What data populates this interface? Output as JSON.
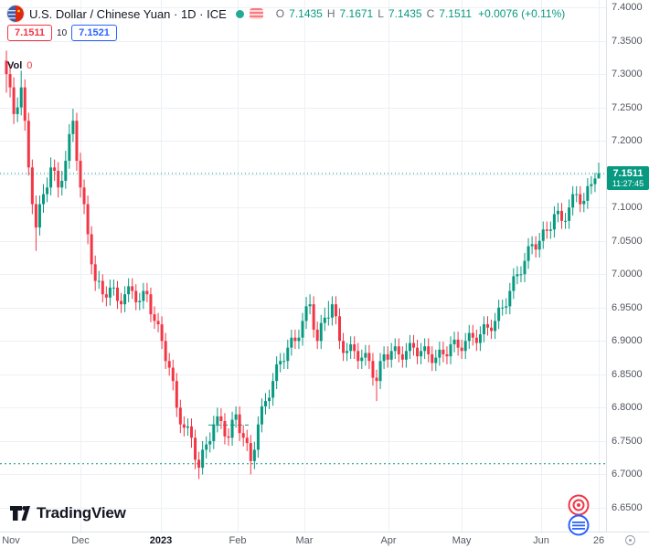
{
  "header": {
    "title": "U.S. Dollar / Chinese Yuan · 1D · ICE",
    "ohlc": {
      "o_label": "O",
      "o_value": "7.1435",
      "h_label": "H",
      "h_value": "7.1671",
      "l_label": "L",
      "l_value": "7.1435",
      "c_label": "C",
      "c_value": "7.1511",
      "change": "+0.0076 (+0.11%)"
    },
    "sell_price": "7.1511",
    "spread": "10",
    "buy_price": "7.1521",
    "volume_label": "Vol",
    "volume_value": "0"
  },
  "price_scale": {
    "labels": [
      "7.4000",
      "7.3500",
      "7.3000",
      "7.2500",
      "7.2000",
      "7.1500",
      "7.1000",
      "7.0500",
      "7.0000",
      "6.9500",
      "6.9000",
      "6.8500",
      "6.8000",
      "6.7500",
      "6.7000",
      "6.6500"
    ],
    "current_price": "7.1511",
    "countdown": "11:27:45"
  },
  "time_scale": {
    "ticks": [
      {
        "label": "Nov",
        "x": 12,
        "grid": false
      },
      {
        "label": "Dec",
        "x": 88,
        "grid": true
      },
      {
        "label": "2023",
        "x": 176,
        "grid": true,
        "year": true
      },
      {
        "label": "Feb",
        "x": 260,
        "grid": true
      },
      {
        "label": "Mar",
        "x": 333,
        "grid": true
      },
      {
        "label": "Apr",
        "x": 425,
        "grid": true
      },
      {
        "label": "May",
        "x": 505,
        "grid": true
      },
      {
        "label": "Jun",
        "x": 592,
        "grid": true
      },
      {
        "label": "26",
        "x": 655,
        "grid": true
      }
    ]
  },
  "footer": {
    "logo_text": "TradingView"
  },
  "colors": {
    "up": "#089981",
    "down": "#f23645",
    "accent_blue": "#2962ff",
    "grid": "#edf0f4",
    "axis_text": "#50535e",
    "badge_bg": "#089981"
  },
  "chart_data": {
    "type": "candlestick",
    "title": "U.S. Dollar / Chinese Yuan",
    "timeframe": "1D",
    "exchange": "ICE",
    "current_ohlc": {
      "open": 7.1435,
      "high": 7.1671,
      "low": 7.1435,
      "close": 7.1511,
      "change": 0.0076,
      "change_pct": 0.11
    },
    "y_axis": {
      "min": 6.65,
      "max": 7.4,
      "step": 0.05
    },
    "x_range": "Nov 2022 - Jun 2023 (daily)",
    "price_line": 7.1511,
    "dashed_levels": [
      {
        "price": 6.716,
        "x1": 0,
        "x2": 663
      },
      {
        "price": 6.774,
        "x1": 228,
        "x2": 272
      }
    ],
    "candles": [
      [
        7.32,
        7.335,
        7.272,
        7.3
      ],
      [
        7.3,
        7.315,
        7.265,
        7.28
      ],
      [
        7.28,
        7.295,
        7.225,
        7.24
      ],
      [
        7.24,
        7.265,
        7.228,
        7.25
      ],
      [
        7.25,
        7.305,
        7.238,
        7.28
      ],
      [
        7.28,
        7.292,
        7.215,
        7.23
      ],
      [
        7.23,
        7.242,
        7.148,
        7.16
      ],
      [
        7.16,
        7.172,
        7.09,
        7.105
      ],
      [
        7.105,
        7.118,
        7.035,
        7.07
      ],
      [
        7.07,
        7.118,
        7.058,
        7.105
      ],
      [
        7.105,
        7.135,
        7.092,
        7.12
      ],
      [
        7.12,
        7.145,
        7.108,
        7.13
      ],
      [
        7.13,
        7.175,
        7.118,
        7.16
      ],
      [
        7.16,
        7.172,
        7.14,
        7.155
      ],
      [
        7.155,
        7.168,
        7.115,
        7.13
      ],
      [
        7.13,
        7.155,
        7.118,
        7.14
      ],
      [
        7.14,
        7.185,
        7.128,
        7.17
      ],
      [
        7.17,
        7.225,
        7.158,
        7.21
      ],
      [
        7.21,
        7.248,
        7.198,
        7.23
      ],
      [
        7.23,
        7.242,
        7.155,
        7.17
      ],
      [
        7.17,
        7.182,
        7.115,
        7.13
      ],
      [
        7.13,
        7.142,
        7.09,
        7.105
      ],
      [
        7.105,
        7.118,
        7.045,
        7.06
      ],
      [
        7.06,
        7.072,
        7.0,
        7.015
      ],
      [
        7.015,
        7.028,
        6.975,
        6.99
      ],
      [
        6.99,
        7.005,
        6.978,
        6.99
      ],
      [
        6.99,
        7.0,
        6.958,
        6.97
      ],
      [
        6.97,
        6.982,
        6.952,
        6.965
      ],
      [
        6.965,
        6.992,
        6.953,
        6.98
      ],
      [
        6.98,
        6.992,
        6.968,
        6.98
      ],
      [
        6.98,
        6.99,
        6.948,
        6.96
      ],
      [
        6.96,
        6.972,
        6.942,
        6.955
      ],
      [
        6.955,
        6.982,
        6.943,
        6.97
      ],
      [
        6.97,
        6.994,
        6.958,
        6.982
      ],
      [
        6.982,
        6.994,
        6.963,
        6.975
      ],
      [
        6.975,
        6.985,
        6.946,
        6.958
      ],
      [
        6.958,
        6.972,
        6.946,
        6.96
      ],
      [
        6.96,
        6.987,
        6.948,
        6.975
      ],
      [
        6.975,
        6.987,
        6.958,
        6.97
      ],
      [
        6.97,
        6.98,
        6.928,
        6.94
      ],
      [
        6.94,
        6.952,
        6.918,
        6.93
      ],
      [
        6.93,
        6.942,
        6.913,
        6.925
      ],
      [
        6.925,
        6.937,
        6.888,
        6.9
      ],
      [
        6.9,
        6.912,
        6.858,
        6.87
      ],
      [
        6.87,
        6.882,
        6.848,
        6.86
      ],
      [
        6.86,
        6.872,
        6.826,
        6.84
      ],
      [
        6.84,
        6.852,
        6.786,
        6.8
      ],
      [
        6.8,
        6.812,
        6.762,
        6.775
      ],
      [
        6.775,
        6.787,
        6.757,
        6.77
      ],
      [
        6.77,
        6.784,
        6.758,
        6.772
      ],
      [
        6.772,
        6.784,
        6.74,
        6.755
      ],
      [
        6.755,
        6.767,
        6.708,
        6.722
      ],
      [
        6.722,
        6.734,
        6.693,
        6.71
      ],
      [
        6.71,
        6.75,
        6.7,
        6.737
      ],
      [
        6.737,
        6.757,
        6.724,
        6.745
      ],
      [
        6.745,
        6.763,
        6.733,
        6.75
      ],
      [
        6.75,
        6.788,
        6.738,
        6.775
      ],
      [
        6.775,
        6.8,
        6.763,
        6.787
      ],
      [
        6.787,
        6.799,
        6.768,
        6.78
      ],
      [
        6.78,
        6.792,
        6.745,
        6.757
      ],
      [
        6.757,
        6.769,
        6.743,
        6.755
      ],
      [
        6.755,
        6.794,
        6.743,
        6.782
      ],
      [
        6.782,
        6.802,
        6.77,
        6.79
      ],
      [
        6.79,
        6.802,
        6.75,
        6.762
      ],
      [
        6.762,
        6.774,
        6.742,
        6.755
      ],
      [
        6.755,
        6.767,
        6.735,
        6.747
      ],
      [
        6.747,
        6.759,
        6.7,
        6.72
      ],
      [
        6.72,
        6.749,
        6.708,
        6.737
      ],
      [
        6.737,
        6.787,
        6.725,
        6.775
      ],
      [
        6.775,
        6.814,
        6.763,
        6.802
      ],
      [
        6.802,
        6.822,
        6.79,
        6.81
      ],
      [
        6.81,
        6.827,
        6.798,
        6.815
      ],
      [
        6.815,
        6.852,
        6.803,
        6.84
      ],
      [
        6.84,
        6.877,
        6.828,
        6.865
      ],
      [
        6.865,
        6.882,
        6.853,
        6.87
      ],
      [
        6.87,
        6.882,
        6.858,
        6.87
      ],
      [
        6.87,
        6.902,
        6.858,
        6.89
      ],
      [
        6.89,
        6.917,
        6.878,
        6.905
      ],
      [
        6.905,
        6.917,
        6.888,
        6.9
      ],
      [
        6.9,
        6.917,
        6.888,
        6.905
      ],
      [
        6.905,
        6.942,
        6.893,
        6.93
      ],
      [
        6.93,
        6.966,
        6.918,
        6.952
      ],
      [
        6.952,
        6.97,
        6.94,
        6.955
      ],
      [
        6.955,
        6.967,
        6.905,
        6.917
      ],
      [
        6.917,
        6.929,
        6.888,
        6.9
      ],
      [
        6.9,
        6.939,
        6.888,
        6.927
      ],
      [
        6.927,
        6.95,
        6.915,
        6.935
      ],
      [
        6.935,
        6.96,
        6.923,
        6.935
      ],
      [
        6.935,
        6.967,
        6.923,
        6.955
      ],
      [
        6.955,
        6.967,
        6.925,
        6.937
      ],
      [
        6.937,
        6.949,
        6.888,
        6.9
      ],
      [
        6.9,
        6.912,
        6.87,
        6.882
      ],
      [
        6.882,
        6.897,
        6.87,
        6.885
      ],
      [
        6.885,
        6.907,
        6.873,
        6.895
      ],
      [
        6.895,
        6.907,
        6.873,
        6.885
      ],
      [
        6.885,
        6.897,
        6.858,
        6.87
      ],
      [
        6.87,
        6.887,
        6.858,
        6.875
      ],
      [
        6.875,
        6.894,
        6.863,
        6.882
      ],
      [
        6.882,
        6.894,
        6.858,
        6.87
      ],
      [
        6.87,
        6.882,
        6.833,
        6.845
      ],
      [
        6.845,
        6.857,
        6.81,
        6.84
      ],
      [
        6.84,
        6.882,
        6.828,
        6.87
      ],
      [
        6.87,
        6.892,
        6.858,
        6.88
      ],
      [
        6.88,
        6.892,
        6.86,
        6.872
      ],
      [
        6.872,
        6.897,
        6.86,
        6.885
      ],
      [
        6.885,
        6.904,
        6.873,
        6.892
      ],
      [
        6.892,
        6.904,
        6.868,
        6.88
      ],
      [
        6.88,
        6.892,
        6.86,
        6.872
      ],
      [
        6.872,
        6.897,
        6.86,
        6.885
      ],
      [
        6.885,
        6.909,
        6.873,
        6.897
      ],
      [
        6.897,
        6.909,
        6.878,
        6.89
      ],
      [
        6.89,
        6.902,
        6.865,
        6.877
      ],
      [
        6.877,
        6.897,
        6.865,
        6.885
      ],
      [
        6.885,
        6.904,
        6.873,
        6.892
      ],
      [
        6.892,
        6.904,
        6.868,
        6.88
      ],
      [
        6.88,
        6.892,
        6.855,
        6.867
      ],
      [
        6.867,
        6.887,
        6.855,
        6.875
      ],
      [
        6.875,
        6.899,
        6.863,
        6.887
      ],
      [
        6.887,
        6.899,
        6.868,
        6.88
      ],
      [
        6.88,
        6.892,
        6.865,
        6.877
      ],
      [
        6.877,
        6.907,
        6.865,
        6.895
      ],
      [
        6.895,
        6.914,
        6.883,
        6.902
      ],
      [
        6.902,
        6.914,
        6.878,
        6.89
      ],
      [
        6.89,
        6.902,
        6.873,
        6.885
      ],
      [
        6.885,
        6.912,
        6.873,
        6.9
      ],
      [
        6.9,
        6.924,
        6.888,
        6.912
      ],
      [
        6.912,
        6.924,
        6.893,
        6.905
      ],
      [
        6.905,
        6.917,
        6.885,
        6.897
      ],
      [
        6.897,
        6.922,
        6.885,
        6.91
      ],
      [
        6.91,
        6.937,
        6.898,
        6.925
      ],
      [
        6.925,
        6.937,
        6.908,
        6.92
      ],
      [
        6.92,
        6.932,
        6.903,
        6.915
      ],
      [
        6.915,
        6.942,
        6.903,
        6.93
      ],
      [
        6.93,
        6.962,
        6.918,
        6.95
      ],
      [
        6.95,
        6.962,
        6.938,
        6.95
      ],
      [
        6.95,
        6.964,
        6.94,
        6.952
      ],
      [
        6.952,
        6.987,
        6.94,
        6.975
      ],
      [
        6.975,
        7.009,
        6.963,
        6.997
      ],
      [
        6.997,
        7.012,
        6.985,
        7.0
      ],
      [
        7.0,
        7.012,
        6.988,
        7.0
      ],
      [
        7.0,
        7.032,
        6.988,
        7.02
      ],
      [
        7.02,
        7.054,
        7.008,
        7.042
      ],
      [
        7.042,
        7.057,
        7.03,
        7.045
      ],
      [
        7.045,
        7.057,
        7.025,
        7.037
      ],
      [
        7.037,
        7.062,
        7.025,
        7.05
      ],
      [
        7.05,
        7.079,
        7.038,
        7.067
      ],
      [
        7.067,
        7.079,
        7.053,
        7.065
      ],
      [
        7.065,
        7.079,
        7.053,
        7.067
      ],
      [
        7.067,
        7.102,
        7.055,
        7.09
      ],
      [
        7.09,
        7.107,
        7.078,
        7.095
      ],
      [
        7.095,
        7.107,
        7.068,
        7.08
      ],
      [
        7.08,
        7.092,
        7.068,
        7.08
      ],
      [
        7.08,
        7.112,
        7.068,
        7.1
      ],
      [
        7.1,
        7.132,
        7.088,
        7.12
      ],
      [
        7.12,
        7.132,
        7.108,
        7.12
      ],
      [
        7.12,
        7.132,
        7.093,
        7.105
      ],
      [
        7.105,
        7.122,
        7.093,
        7.11
      ],
      [
        7.11,
        7.144,
        7.098,
        7.132
      ],
      [
        7.132,
        7.147,
        7.12,
        7.135
      ],
      [
        7.135,
        7.152,
        7.123,
        7.1435
      ],
      [
        7.1435,
        7.1671,
        7.1435,
        7.1511
      ]
    ]
  }
}
